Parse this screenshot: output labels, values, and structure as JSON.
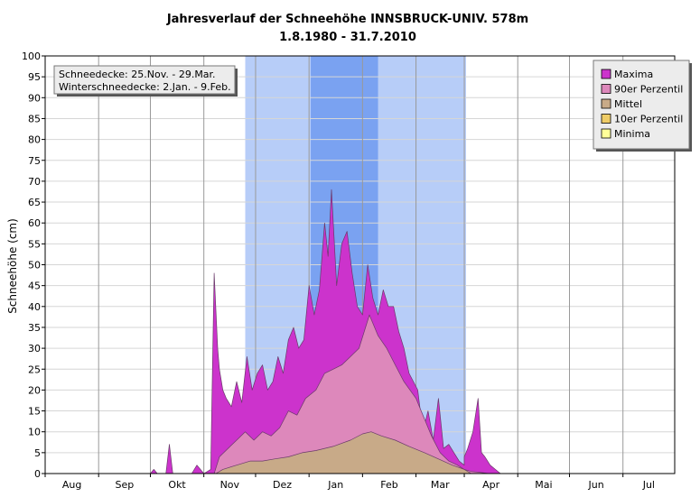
{
  "chart_data": {
    "type": "area",
    "title": "Jahresverlauf der Schneehöhe INNSBRUCK-UNIV. 578m",
    "subtitle": "1.8.1980 - 31.7.2010",
    "xlabel": "",
    "ylabel": "Schneehöhe (cm)",
    "ylim": [
      0,
      100
    ],
    "yticks": [
      0,
      5,
      10,
      15,
      20,
      25,
      30,
      35,
      40,
      45,
      50,
      55,
      60,
      65,
      70,
      75,
      80,
      85,
      90,
      95,
      100
    ],
    "months": [
      "Aug",
      "Sep",
      "Okt",
      "Nov",
      "Dez",
      "Jan",
      "Feb",
      "Mar",
      "Apr",
      "Mai",
      "Jun",
      "Jul"
    ],
    "grid": true,
    "legend_position": "top-right",
    "annotations": [
      "Schneedecke: 25.Nov. - 29.Mar.",
      "Winterschneedecke: 2.Jan. - 9.Feb."
    ],
    "periods": [
      {
        "label": "Schneedecke",
        "start": "11-25",
        "end": "03-29",
        "color": "#b7cdf8"
      },
      {
        "label": "Winterschneedecke",
        "start": "01-02",
        "end": "02-09",
        "color": "#7aa2f1"
      }
    ],
    "series": [
      {
        "name": "Maxima",
        "color": "#cc33cc",
        "x": [
          "10-01",
          "10-03",
          "10-05",
          "10-10",
          "10-12",
          "10-14",
          "10-18",
          "10-22",
          "10-25",
          "10-28",
          "11-01",
          "11-05",
          "11-07",
          "11-09",
          "11-10",
          "11-12",
          "11-14",
          "11-17",
          "11-20",
          "11-23",
          "11-26",
          "11-29",
          "12-02",
          "12-05",
          "12-08",
          "12-11",
          "12-14",
          "12-17",
          "12-20",
          "12-23",
          "12-26",
          "12-29",
          "01-01",
          "01-04",
          "01-07",
          "01-10",
          "01-12",
          "01-14",
          "01-17",
          "01-20",
          "01-23",
          "01-26",
          "01-29",
          "02-01",
          "02-04",
          "02-07",
          "02-10",
          "02-13",
          "02-16",
          "02-19",
          "02-22",
          "02-25",
          "02-28",
          "03-02",
          "03-05",
          "03-08",
          "03-11",
          "03-14",
          "03-17",
          "03-20",
          "03-23",
          "03-26",
          "03-29",
          "04-01",
          "04-03",
          "04-06",
          "04-09",
          "04-11",
          "04-13",
          "04-16",
          "04-19",
          "04-22"
        ],
        "values": [
          0,
          1,
          0,
          0,
          7,
          0,
          0,
          0,
          0,
          2,
          0,
          1,
          48,
          30,
          25,
          20,
          18,
          16,
          22,
          17,
          28,
          20,
          24,
          26,
          20,
          22,
          28,
          24,
          32,
          35,
          30,
          32,
          45,
          38,
          44,
          60,
          52,
          68,
          45,
          55,
          58,
          48,
          40,
          38,
          50,
          42,
          38,
          44,
          40,
          40,
          34,
          30,
          24,
          20,
          10,
          15,
          8,
          18,
          6,
          7,
          5,
          3,
          2,
          4,
          6,
          10,
          18,
          5,
          4,
          2,
          1,
          0
        ]
      },
      {
        "name": "90er Perzentil",
        "color": "#dd88bb",
        "x": [
          "11-05",
          "11-07",
          "11-10",
          "11-15",
          "11-20",
          "11-25",
          "11-30",
          "12-05",
          "12-10",
          "12-15",
          "12-20",
          "12-25",
          "12-30",
          "01-05",
          "01-10",
          "01-15",
          "01-20",
          "01-25",
          "01-30",
          "02-05",
          "02-10",
          "02-15",
          "02-20",
          "02-25",
          "03-01",
          "03-05",
          "03-10",
          "03-15",
          "03-20",
          "03-25",
          "03-29",
          "04-05",
          "04-10",
          "04-15"
        ],
        "values": [
          0,
          0,
          4,
          6,
          8,
          10,
          8,
          10,
          9,
          11,
          15,
          14,
          18,
          20,
          24,
          25,
          26,
          28,
          30,
          38,
          33,
          30,
          26,
          22,
          18,
          14,
          9,
          5,
          3,
          2,
          1,
          0.5,
          0.3,
          0
        ]
      },
      {
        "name": "Mittel",
        "color": "#c8aa88",
        "x": [
          "11-08",
          "11-12",
          "11-20",
          "11-28",
          "12-05",
          "12-12",
          "12-20",
          "12-28",
          "01-05",
          "01-15",
          "01-25",
          "02-01",
          "02-06",
          "02-12",
          "02-20",
          "02-28",
          "03-06",
          "03-14",
          "03-22",
          "03-29",
          "04-05"
        ],
        "values": [
          0,
          1,
          2,
          3,
          3,
          3.5,
          4,
          5,
          5.5,
          6.5,
          8,
          9.5,
          10,
          9,
          8,
          6.5,
          5,
          3.5,
          2,
          1,
          0
        ]
      },
      {
        "name": "10er Perzentil",
        "color": "#eecc66",
        "x": [
          "11-01",
          "04-30"
        ],
        "values": [
          0,
          0
        ]
      },
      {
        "name": "Minima",
        "color": "#ffff99",
        "x": [
          "11-01",
          "04-30"
        ],
        "values": [
          0,
          0
        ]
      }
    ]
  }
}
